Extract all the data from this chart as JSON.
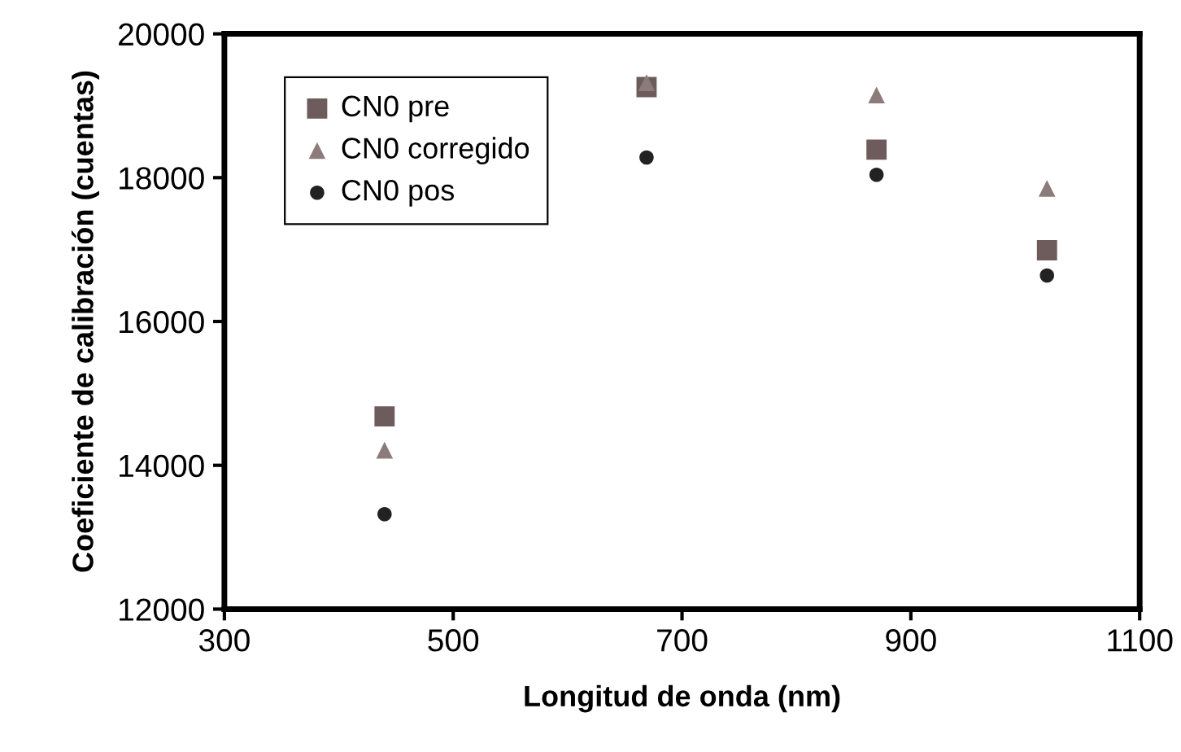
{
  "chart_data": {
    "type": "scatter",
    "xlabel": "Longitud de onda (nm)",
    "ylabel": "Coeficiente de calibración (cuentas)",
    "xlim": [
      300,
      1100
    ],
    "xticks": [
      300,
      500,
      700,
      900,
      1100
    ],
    "ylim": [
      12000,
      20000
    ],
    "yticks": [
      12000,
      14000,
      16000,
      18000,
      20000
    ],
    "legend": "top left",
    "grid": false,
    "series": [
      {
        "name": "CN0 pre",
        "color": "#6e5c5c",
        "marker": "square",
        "x": [
          440,
          669,
          870,
          1019
        ],
        "values": [
          14680,
          19260,
          18390,
          16990
        ]
      },
      {
        "name": "CN0 corregido",
        "color": "#8c7b7b",
        "marker": "triangle",
        "x": [
          440,
          669,
          870,
          1019
        ],
        "values": [
          14210,
          19320,
          19150,
          17850
        ]
      },
      {
        "name": "CN0 pos",
        "color": "#222222",
        "marker": "circle",
        "x": [
          440,
          669,
          870,
          1019
        ],
        "values": [
          13320,
          18280,
          18040,
          16640
        ]
      }
    ]
  }
}
